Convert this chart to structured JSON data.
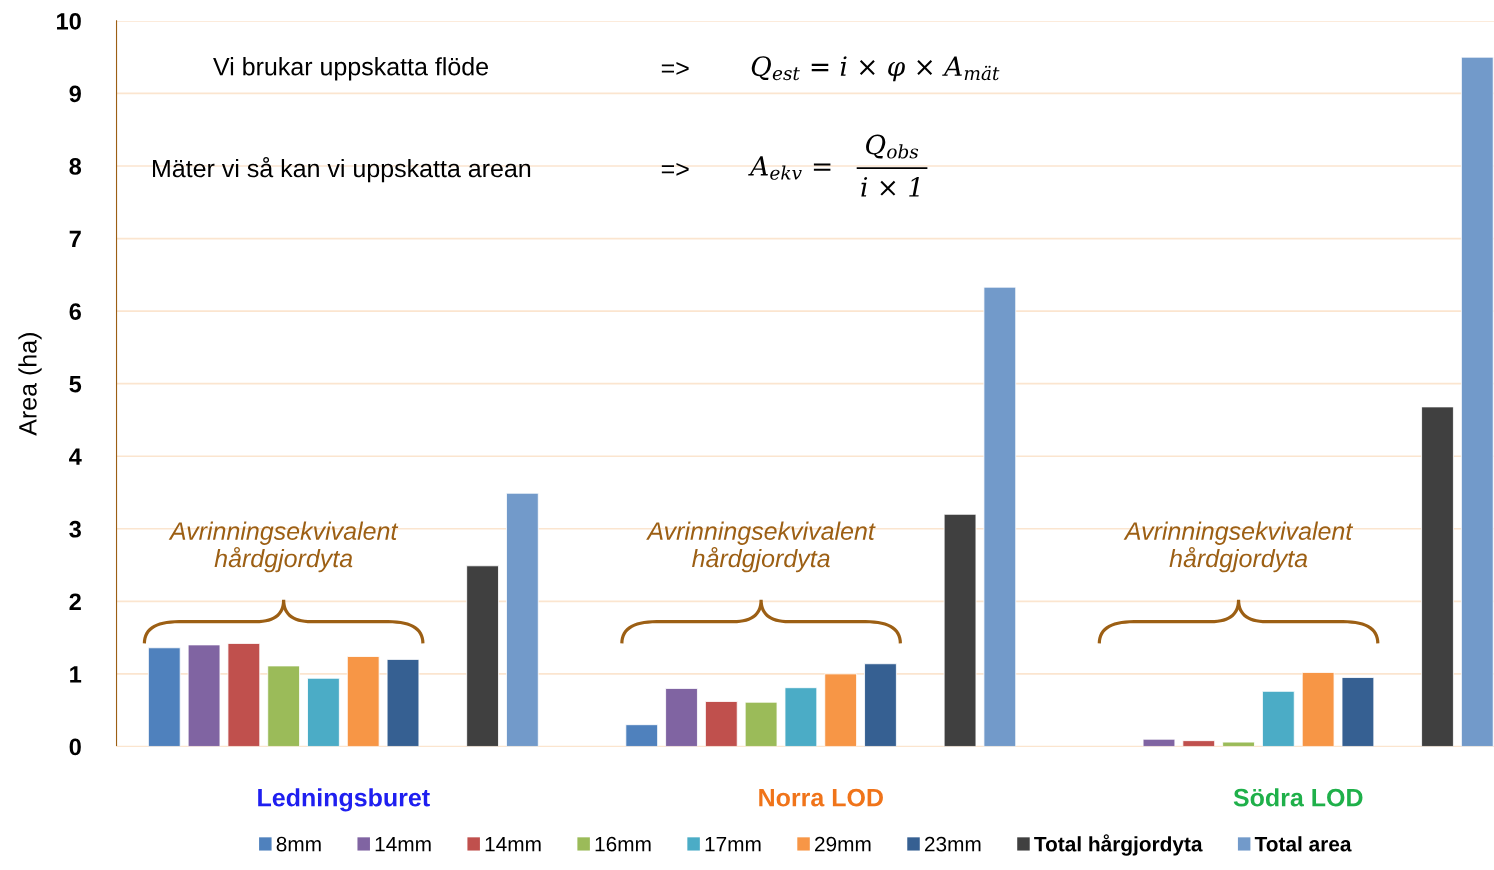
{
  "chart_data": {
    "type": "bar",
    "ylabel": "Area (ha)",
    "categories": [
      "Ledningsburet",
      "Norra LOD",
      "Södra LOD"
    ],
    "series": [
      {
        "name": "8mm",
        "color": "#4f81bd",
        "values": [
          1.36,
          0.3,
          null
        ]
      },
      {
        "name": "14mm",
        "color": "#8064a2",
        "values": [
          1.4,
          0.8,
          0.1
        ]
      },
      {
        "name": "14mm",
        "color": "#c0504d",
        "values": [
          1.42,
          0.62,
          0.08
        ]
      },
      {
        "name": "16mm",
        "color": "#9bbb59",
        "values": [
          1.11,
          0.61,
          0.06
        ]
      },
      {
        "name": "17mm",
        "color": "#4bacc6",
        "values": [
          0.94,
          0.81,
          0.76
        ]
      },
      {
        "name": "29mm",
        "color": "#f79646",
        "values": [
          1.24,
          1.0,
          1.02
        ]
      },
      {
        "name": "23mm",
        "color": "#366092",
        "values": [
          1.2,
          1.14,
          0.95
        ]
      },
      {
        "name": "Total hårgjordyta",
        "color": "#404040",
        "values": [
          2.49,
          3.2,
          4.68
        ]
      },
      {
        "name": "Total area",
        "color": "#729aca",
        "values": [
          3.49,
          6.33,
          9.5
        ]
      }
    ],
    "ylim": [
      0,
      10
    ],
    "yticks": [
      0,
      1,
      2,
      3,
      4,
      5,
      6,
      7,
      8,
      9,
      10
    ],
    "grid": "y",
    "legend": "bottom",
    "annotations": [
      "Vi brukar uppskatta flöde",
      "=>",
      "Q$_{est}$ = i × φ × A$_{mät}$",
      "Mäter vi så kan vi uppskatta arean",
      "=>",
      "A$_{ekv}$ =",
      "Q$_{obs}$",
      "i × 1",
      "Avrinningsekvivalent\nhårdgjordyta",
      "Avrinningsekvivalent\nhårdgjordyta",
      "Avrinningsekvivalent\nhårdgjordyta"
    ]
  }
}
